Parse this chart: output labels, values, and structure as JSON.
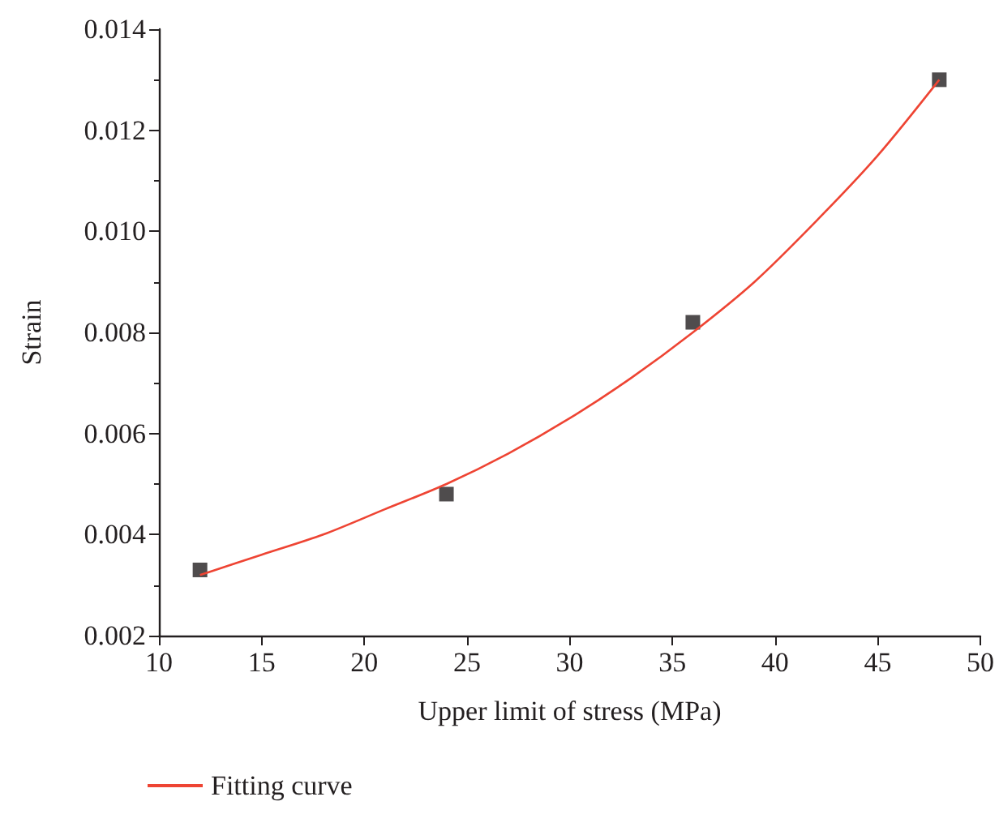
{
  "chart_data": {
    "type": "scatter",
    "xlabel": "Upper limit of stress (MPa)",
    "ylabel": "Strain",
    "xlim": [
      10,
      50
    ],
    "xticks": [
      10,
      15,
      20,
      25,
      30,
      35,
      40,
      45,
      50
    ],
    "ylim": [
      0.002,
      0.014
    ],
    "yticks": [
      0.002,
      0.004,
      0.006,
      0.008,
      {
        "value": 0.01,
        "label": "0.010"
      },
      0.012,
      0.014
    ],
    "grid": false,
    "legend": "bottom left",
    "series": [
      {
        "color": "#231f20",
        "marker": "square",
        "x": [
          12,
          24,
          36,
          48
        ],
        "values": [
          0.0033,
          0.0048,
          0.0082,
          0.013
        ]
      },
      {
        "type": "line",
        "name": "Fitting curve",
        "color": "#ee4433",
        "marker": "none",
        "line_style": "solid",
        "x": [
          12,
          15,
          18,
          21,
          24,
          27,
          30,
          33,
          36,
          39,
          42,
          45,
          48
        ],
        "values": [
          0.0032,
          0.0036,
          0.004,
          0.0045,
          0.005,
          0.0056,
          0.0063,
          0.0071,
          0.008,
          0.009,
          0.0102,
          0.0115,
          0.013
        ]
      }
    ]
  }
}
